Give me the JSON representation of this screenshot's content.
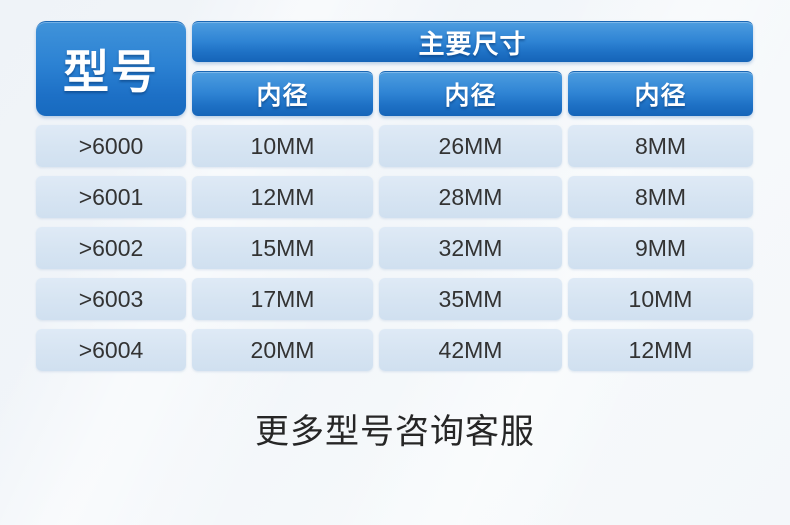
{
  "table": {
    "model_header": "型号",
    "main_header": "主要尺寸",
    "sub_headers": [
      "内径",
      "内径",
      "内径"
    ],
    "rows": [
      {
        "model": ">6000",
        "values": [
          "10MM",
          "26MM",
          "8MM"
        ]
      },
      {
        "model": ">6001",
        "values": [
          "12MM",
          "28MM",
          "8MM"
        ]
      },
      {
        "model": ">6002",
        "values": [
          "15MM",
          "32MM",
          "9MM"
        ]
      },
      {
        "model": ">6003",
        "values": [
          "17MM",
          "35MM",
          "10MM"
        ]
      },
      {
        "model": ">6004",
        "values": [
          "20MM",
          "42MM",
          "12MM"
        ]
      }
    ]
  },
  "footer": {
    "note": "更多型号咨询客服"
  },
  "colors": {
    "header_blue_top": "#4d9de0",
    "header_blue_bottom": "#1564b8",
    "data_cell_blue": "#d6e4f2",
    "text_dark": "#333333",
    "page_background": "#f1f5f9"
  },
  "chart_data": {
    "type": "table",
    "title": "主要尺寸",
    "columns": [
      "型号",
      "内径",
      "内径",
      "内径"
    ],
    "rows": [
      [
        ">6000",
        "10MM",
        "26MM",
        "8MM"
      ],
      [
        ">6001",
        "12MM",
        "28MM",
        "8MM"
      ],
      [
        ">6002",
        "15MM",
        "32MM",
        "9MM"
      ],
      [
        ">6003",
        "17MM",
        "35MM",
        "10MM"
      ],
      [
        ">6004",
        "20MM",
        "42MM",
        "12MM"
      ]
    ],
    "footnote": "更多型号咨询客服"
  }
}
